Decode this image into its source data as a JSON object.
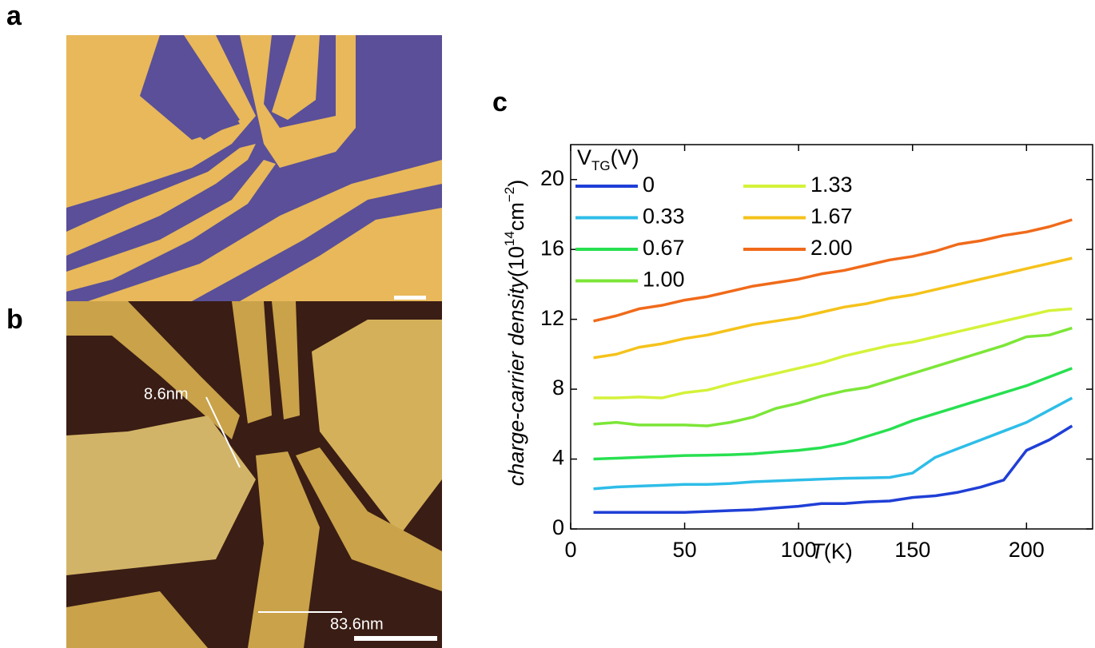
{
  "panels": {
    "a": "a",
    "b": "b",
    "c": "c"
  },
  "annotations": {
    "thickness": "8.6nm",
    "gap": "83.6nm"
  },
  "chart_data": {
    "type": "line",
    "ylabel": {
      "text": "charge-carrier density",
      "unit": [
        "(10",
        "14",
        "cm",
        "−2",
        ")"
      ]
    },
    "xlabel": {
      "text": "T",
      "unit": "(K)"
    },
    "legend_title": [
      "V",
      "TG",
      "(V)"
    ],
    "x": [
      10,
      20,
      30,
      40,
      50,
      60,
      70,
      80,
      90,
      100,
      110,
      120,
      130,
      140,
      150,
      160,
      170,
      180,
      190,
      200,
      210,
      220
    ],
    "xlim": [
      0,
      229
    ],
    "xticks": [
      0,
      50,
      100,
      150,
      200
    ],
    "ylim": [
      0,
      22
    ],
    "yticks": [
      0,
      4,
      8,
      12,
      16,
      20
    ],
    "series": [
      {
        "name": "0",
        "color": "#1f3fd6",
        "values": [
          0.95,
          0.95,
          0.95,
          0.95,
          0.95,
          1.0,
          1.05,
          1.1,
          1.2,
          1.3,
          1.45,
          1.45,
          1.55,
          1.6,
          1.8,
          1.9,
          2.1,
          2.4,
          2.8,
          4.5,
          5.1,
          5.9
        ]
      },
      {
        "name": "0.33",
        "color": "#2ebde8",
        "values": [
          2.3,
          2.4,
          2.45,
          2.5,
          2.55,
          2.55,
          2.6,
          2.7,
          2.75,
          2.8,
          2.85,
          2.9,
          2.92,
          2.95,
          3.2,
          4.1,
          4.6,
          5.1,
          5.6,
          6.1,
          6.8,
          7.5
        ]
      },
      {
        "name": "0.67",
        "color": "#28e050",
        "values": [
          4.0,
          4.05,
          4.1,
          4.15,
          4.2,
          4.22,
          4.25,
          4.3,
          4.4,
          4.5,
          4.65,
          4.9,
          5.3,
          5.7,
          6.2,
          6.6,
          7.0,
          7.4,
          7.8,
          8.2,
          8.7,
          9.2
        ]
      },
      {
        "name": "1.00",
        "color": "#7ce638",
        "values": [
          6.0,
          6.1,
          5.95,
          5.95,
          5.95,
          5.9,
          6.1,
          6.4,
          6.9,
          7.2,
          7.6,
          7.9,
          8.1,
          8.5,
          8.9,
          9.3,
          9.7,
          10.1,
          10.5,
          11.0,
          11.1,
          11.5
        ]
      },
      {
        "name": "1.33",
        "color": "#d4f23a",
        "values": [
          7.5,
          7.5,
          7.55,
          7.5,
          7.8,
          7.95,
          8.3,
          8.6,
          8.9,
          9.2,
          9.5,
          9.9,
          10.2,
          10.5,
          10.7,
          11.0,
          11.3,
          11.6,
          11.9,
          12.2,
          12.5,
          12.6
        ]
      },
      {
        "name": "1.67",
        "color": "#f5c21a",
        "values": [
          9.8,
          10.0,
          10.4,
          10.6,
          10.9,
          11.1,
          11.4,
          11.7,
          11.9,
          12.1,
          12.4,
          12.7,
          12.9,
          13.2,
          13.4,
          13.7,
          14.0,
          14.3,
          14.6,
          14.9,
          15.2,
          15.5
        ]
      },
      {
        "name": "2.00",
        "color": "#f06a1a",
        "values": [
          11.9,
          12.2,
          12.6,
          12.8,
          13.1,
          13.3,
          13.6,
          13.9,
          14.1,
          14.3,
          14.6,
          14.8,
          15.1,
          15.4,
          15.6,
          15.9,
          16.3,
          16.5,
          16.8,
          17.0,
          17.3,
          17.7
        ]
      }
    ]
  }
}
